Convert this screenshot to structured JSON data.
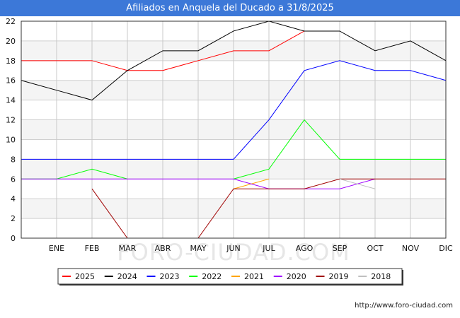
{
  "title": "Afiliados en Anquela del Ducado a 31/8/2025",
  "watermark": "FORO-CIUDAD.COM",
  "source": "http://www.foro-ciudad.com",
  "chart_data": {
    "type": "line",
    "title": "Afiliados en Anquela del Ducado a 31/8/2025",
    "categories": [
      "",
      "ENE",
      "FEB",
      "MAR",
      "ABR",
      "MAY",
      "JUN",
      "JUL",
      "AGO",
      "SEP",
      "OCT",
      "NOV",
      "DIC"
    ],
    "ylim": [
      0,
      22
    ],
    "yticks": [
      0,
      2,
      4,
      6,
      8,
      10,
      12,
      14,
      16,
      18,
      20,
      22
    ],
    "grid": true,
    "legend_position": "bottom",
    "series": [
      {
        "name": "2025",
        "color": "#ff0000",
        "values": [
          18,
          18,
          18,
          17,
          17,
          18,
          19,
          19,
          21,
          null,
          null,
          null,
          null
        ]
      },
      {
        "name": "2024",
        "color": "#000000",
        "values": [
          16,
          15,
          14,
          17,
          19,
          19,
          21,
          22,
          21,
          21,
          19,
          20,
          18
        ]
      },
      {
        "name": "2023",
        "color": "#0000ff",
        "values": [
          8,
          8,
          8,
          8,
          8,
          8,
          8,
          12,
          17,
          18,
          17,
          17,
          16
        ]
      },
      {
        "name": "2022",
        "color": "#00ff00",
        "values": [
          6,
          6,
          7,
          6,
          null,
          null,
          6,
          7,
          12,
          8,
          8,
          8,
          8
        ]
      },
      {
        "name": "2021",
        "color": "#ffa500",
        "values": [
          null,
          null,
          null,
          null,
          null,
          null,
          5,
          6,
          null,
          null,
          null,
          null,
          null
        ]
      },
      {
        "name": "2020",
        "color": "#a000ff",
        "values": [
          6,
          6,
          6,
          6,
          6,
          6,
          6,
          5,
          5,
          5,
          6,
          null,
          null
        ]
      },
      {
        "name": "2019",
        "color": "#a00000",
        "values": [
          null,
          null,
          5,
          0,
          null,
          0,
          5,
          5,
          5,
          6,
          6,
          6,
          6
        ]
      },
      {
        "name": "2018",
        "color": "#c0c0c0",
        "values": [
          null,
          null,
          null,
          null,
          null,
          null,
          null,
          null,
          null,
          6,
          5,
          null,
          null
        ]
      }
    ]
  }
}
